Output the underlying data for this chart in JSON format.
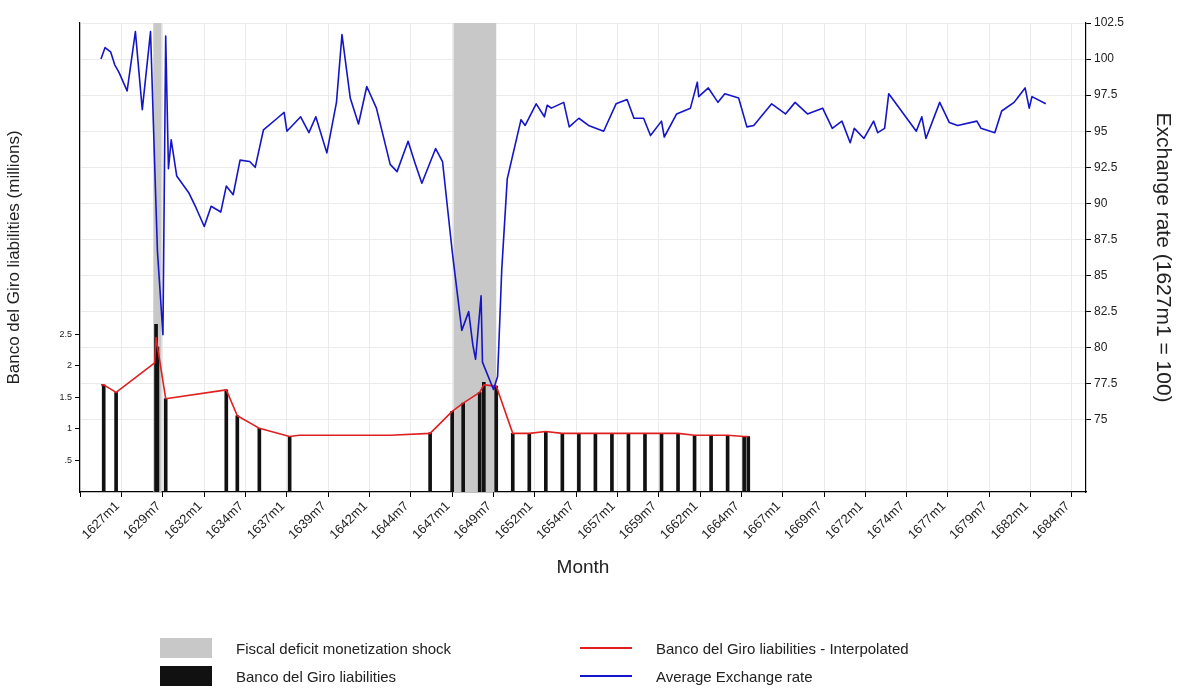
{
  "chart_data": {
    "type": "line",
    "xlabel": "Month",
    "ylabel": "Banco del Giro liabilities (millions)",
    "y2label": "Exchange rate (1627m1 = 100)",
    "xlim": [
      "1627-01",
      "1685-05"
    ],
    "xticks": [
      {
        "value": "1627-01",
        "label": "1627m1"
      },
      {
        "value": "1629-07",
        "label": "1629m7"
      },
      {
        "value": "1632-01",
        "label": "1632m1"
      },
      {
        "value": "1634-07",
        "label": "1634m7"
      },
      {
        "value": "1637-01",
        "label": "1637m1"
      },
      {
        "value": "1639-07",
        "label": "1639m7"
      },
      {
        "value": "1642-01",
        "label": "1642m1"
      },
      {
        "value": "1644-07",
        "label": "1644m7"
      },
      {
        "value": "1647-01",
        "label": "1647m1"
      },
      {
        "value": "1649-07",
        "label": "1649m7"
      },
      {
        "value": "1652-01",
        "label": "1652m1"
      },
      {
        "value": "1654-07",
        "label": "1654m7"
      },
      {
        "value": "1657-01",
        "label": "1657m1"
      },
      {
        "value": "1659-07",
        "label": "1659m7"
      },
      {
        "value": "1662-01",
        "label": "1662m1"
      },
      {
        "value": "1664-07",
        "label": "1664m7"
      },
      {
        "value": "1667-01",
        "label": "1667m1"
      },
      {
        "value": "1669-07",
        "label": "1669m7"
      },
      {
        "value": "1672-01",
        "label": "1672m1"
      },
      {
        "value": "1674-07",
        "label": "1674m7"
      },
      {
        "value": "1677-01",
        "label": "1677m1"
      },
      {
        "value": "1679-07",
        "label": "1679m7"
      },
      {
        "value": "1682-01",
        "label": "1682m1"
      },
      {
        "value": "1684-07",
        "label": "1684m7"
      }
    ],
    "ylim": [
      0,
      7.44
    ],
    "yticks": [
      {
        "value": 0.5,
        "label": ".5"
      },
      1,
      1.5,
      2,
      2.5
    ],
    "y2lim": [
      70,
      102.5
    ],
    "y2ticks": [
      75,
      77.5,
      80,
      82.5,
      85,
      87.5,
      90,
      92.5,
      95,
      97.5,
      100,
      102.5
    ],
    "grid": true,
    "legend": "bottom",
    "bands": [
      {
        "axis": "x",
        "from": "1630-03",
        "to": "1630-09",
        "label": "Fiscal deficit monetization shock",
        "color": "#c8c8c8"
      },
      {
        "axis": "x",
        "from": "1648-05",
        "to": "1650-12",
        "color": "#c8c8c8"
      }
    ],
    "series": [
      {
        "type": "bar",
        "name": "Banco del Giro liabilities",
        "color": "#111111",
        "x": [
          "1627-03",
          "1627-12",
          "1630-04",
          "1630-05",
          "1630-06",
          "1630-12",
          "1634-08",
          "1635-04",
          "1636-08",
          "1638-06",
          "1646-12",
          "1648-04",
          "1648-12",
          "1649-12",
          "1650-03",
          "1650-12",
          "1651-12",
          "1652-12",
          "1653-12",
          "1654-12",
          "1655-12",
          "1656-12",
          "1657-12",
          "1658-12",
          "1659-12",
          "1660-12",
          "1661-12",
          "1662-12",
          "1663-12",
          "1664-12",
          "1665-12",
          "1666-03"
        ],
        "values": [
          1.7,
          1.58,
          null,
          2.66,
          2.3,
          1.48,
          1.62,
          1.21,
          1.01,
          0.88,
          0.94,
          1.28,
          1.41,
          1.58,
          1.74,
          1.68,
          0.93,
          0.93,
          0.96,
          0.93,
          0.93,
          0.93,
          0.93,
          0.93,
          0.93,
          0.93,
          0.93,
          0.9,
          0.9,
          0.9,
          0.88,
          0.88
        ]
      },
      {
        "name": "Banco del Giro liabilities - Interpolated",
        "color": "#e02020",
        "x": [
          "1627-01",
          "1627-03",
          "1627-12",
          "1630-04",
          "1630-05",
          "1630-12",
          "1634-08",
          "1635-04",
          "1636-08",
          "1638-06",
          "1639-01",
          "1644-07",
          "1646-12",
          "1648-04",
          "1648-12",
          "1649-12",
          "1650-03",
          "1650-12",
          "1651-12",
          "1652-12",
          "1653-12",
          "1654-12",
          "1661-12",
          "1662-12",
          "1664-12",
          "1665-12",
          "1666-03"
        ],
        "values": [
          1.7,
          1.7,
          1.58,
          2.05,
          2.45,
          1.48,
          1.62,
          1.21,
          1.01,
          0.88,
          0.9,
          0.9,
          0.93,
          1.28,
          1.41,
          1.58,
          1.7,
          1.68,
          0.93,
          0.93,
          0.96,
          0.93,
          0.93,
          0.9,
          0.9,
          0.88,
          0.88
        ]
      },
      {
        "name": "Average Exchange rate",
        "color": "#1515c8",
        "axis": "y2",
        "x": [
          "1627-01",
          "1627-04",
          "1627-08",
          "1627-11",
          "1628-02",
          "1628-08",
          "1629-02",
          "1629-07",
          "1630-01",
          "1630-04",
          "1630-06",
          "1630-10",
          "1630-12",
          "1631-02",
          "1631-04",
          "1631-08",
          "1632-05",
          "1632-10",
          "1633-04",
          "1633-09",
          "1634-04",
          "1634-08",
          "1635-01",
          "1635-06",
          "1636-01",
          "1636-05",
          "1636-11",
          "1637-09",
          "1638-02",
          "1638-04",
          "1639-02",
          "1639-08",
          "1640-01",
          "1640-09",
          "1641-04",
          "1641-08",
          "1642-02",
          "1642-08",
          "1643-02",
          "1643-09",
          "1644-07",
          "1644-12",
          "1645-08",
          "1646-01",
          "1646-06",
          "1647-04",
          "1647-09",
          "1648-04",
          "1648-11",
          "1649-04",
          "1649-07",
          "1649-09",
          "1650-01",
          "1650-02",
          "1650-10",
          "1651-01",
          "1651-04",
          "1651-08",
          "1652-06",
          "1652-09",
          "1653-05",
          "1653-11",
          "1654-01",
          "1654-04",
          "1655-01",
          "1655-05",
          "1655-12",
          "1656-07",
          "1657-06",
          "1658-03",
          "1658-11",
          "1659-04",
          "1659-11",
          "1660-04",
          "1660-12",
          "1661-02",
          "1661-11",
          "1662-09",
          "1663-02",
          "1663-03",
          "1663-10",
          "1664-05",
          "1664-10",
          "1665-08",
          "1666-02",
          "1666-07",
          "1667-08",
          "1668-06",
          "1669-01",
          "1669-10",
          "1670-09",
          "1671-04",
          "1671-11",
          "1672-05",
          "1672-08",
          "1673-03",
          "1673-10",
          "1674-01",
          "1674-06",
          "1674-09",
          "1676-05",
          "1676-09",
          "1676-12",
          "1677-10",
          "1678-05",
          "1678-11",
          "1680-01",
          "1680-04",
          "1681-02",
          "1681-07",
          "1682-04",
          "1682-12",
          "1683-03",
          "1683-05",
          "1684-03"
        ],
        "values": [
          100.0,
          100.8,
          100.5,
          99.6,
          99.1,
          97.8,
          101.9,
          96.5,
          101.9,
          92.7,
          86.7,
          80.9,
          101.6,
          92.4,
          94.4,
          91.9,
          90.7,
          89.7,
          88.4,
          89.8,
          89.4,
          91.2,
          90.6,
          93.0,
          92.9,
          92.5,
          95.1,
          95.9,
          96.3,
          95.0,
          96.0,
          94.9,
          96.0,
          93.5,
          97.0,
          101.7,
          97.3,
          95.5,
          98.1,
          96.6,
          92.7,
          92.2,
          94.3,
          92.8,
          91.4,
          93.8,
          92.9,
          86.7,
          81.2,
          82.5,
          80.2,
          79.2,
          83.6,
          79.0,
          77.1,
          78.0,
          85.4,
          91.7,
          95.8,
          95.4,
          96.9,
          96.0,
          96.8,
          96.6,
          97.0,
          95.3,
          95.9,
          95.4,
          95.0,
          96.9,
          97.2,
          95.9,
          95.9,
          94.7,
          95.7,
          94.6,
          96.2,
          96.6,
          98.4,
          97.4,
          98.0,
          97.0,
          97.6,
          97.3,
          95.3,
          95.4,
          96.9,
          96.2,
          97.0,
          96.2,
          96.6,
          95.2,
          95.7,
          94.2,
          95.2,
          94.5,
          95.7,
          94.9,
          95.2,
          97.6,
          95.0,
          96.0,
          94.5,
          97.0,
          95.6,
          95.4,
          95.7,
          95.2,
          94.9,
          96.4,
          97.0,
          98.0,
          96.6,
          97.4,
          96.9
        ]
      }
    ]
  }
}
